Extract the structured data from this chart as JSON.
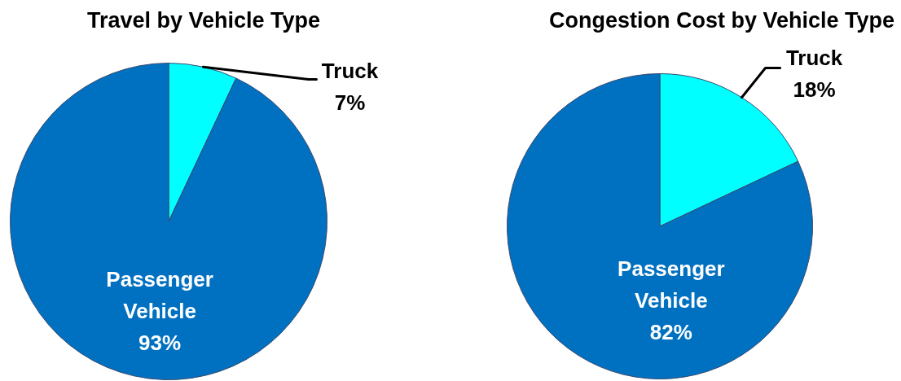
{
  "chart_data": [
    {
      "type": "pie",
      "title": "Travel by Vehicle Type",
      "categories": [
        "Truck",
        "Passenger Vehicle"
      ],
      "values": [
        7,
        93
      ],
      "colors": [
        "#00ffff",
        "#0070c0"
      ],
      "value_labels": [
        "7%",
        "93%"
      ]
    },
    {
      "type": "pie",
      "title": "Congestion Cost by Vehicle Type",
      "categories": [
        "Truck",
        "Passenger Vehicle"
      ],
      "values": [
        18,
        82
      ],
      "colors": [
        "#00ffff",
        "#0070c0"
      ],
      "value_labels": [
        "18%",
        "82%"
      ]
    }
  ]
}
